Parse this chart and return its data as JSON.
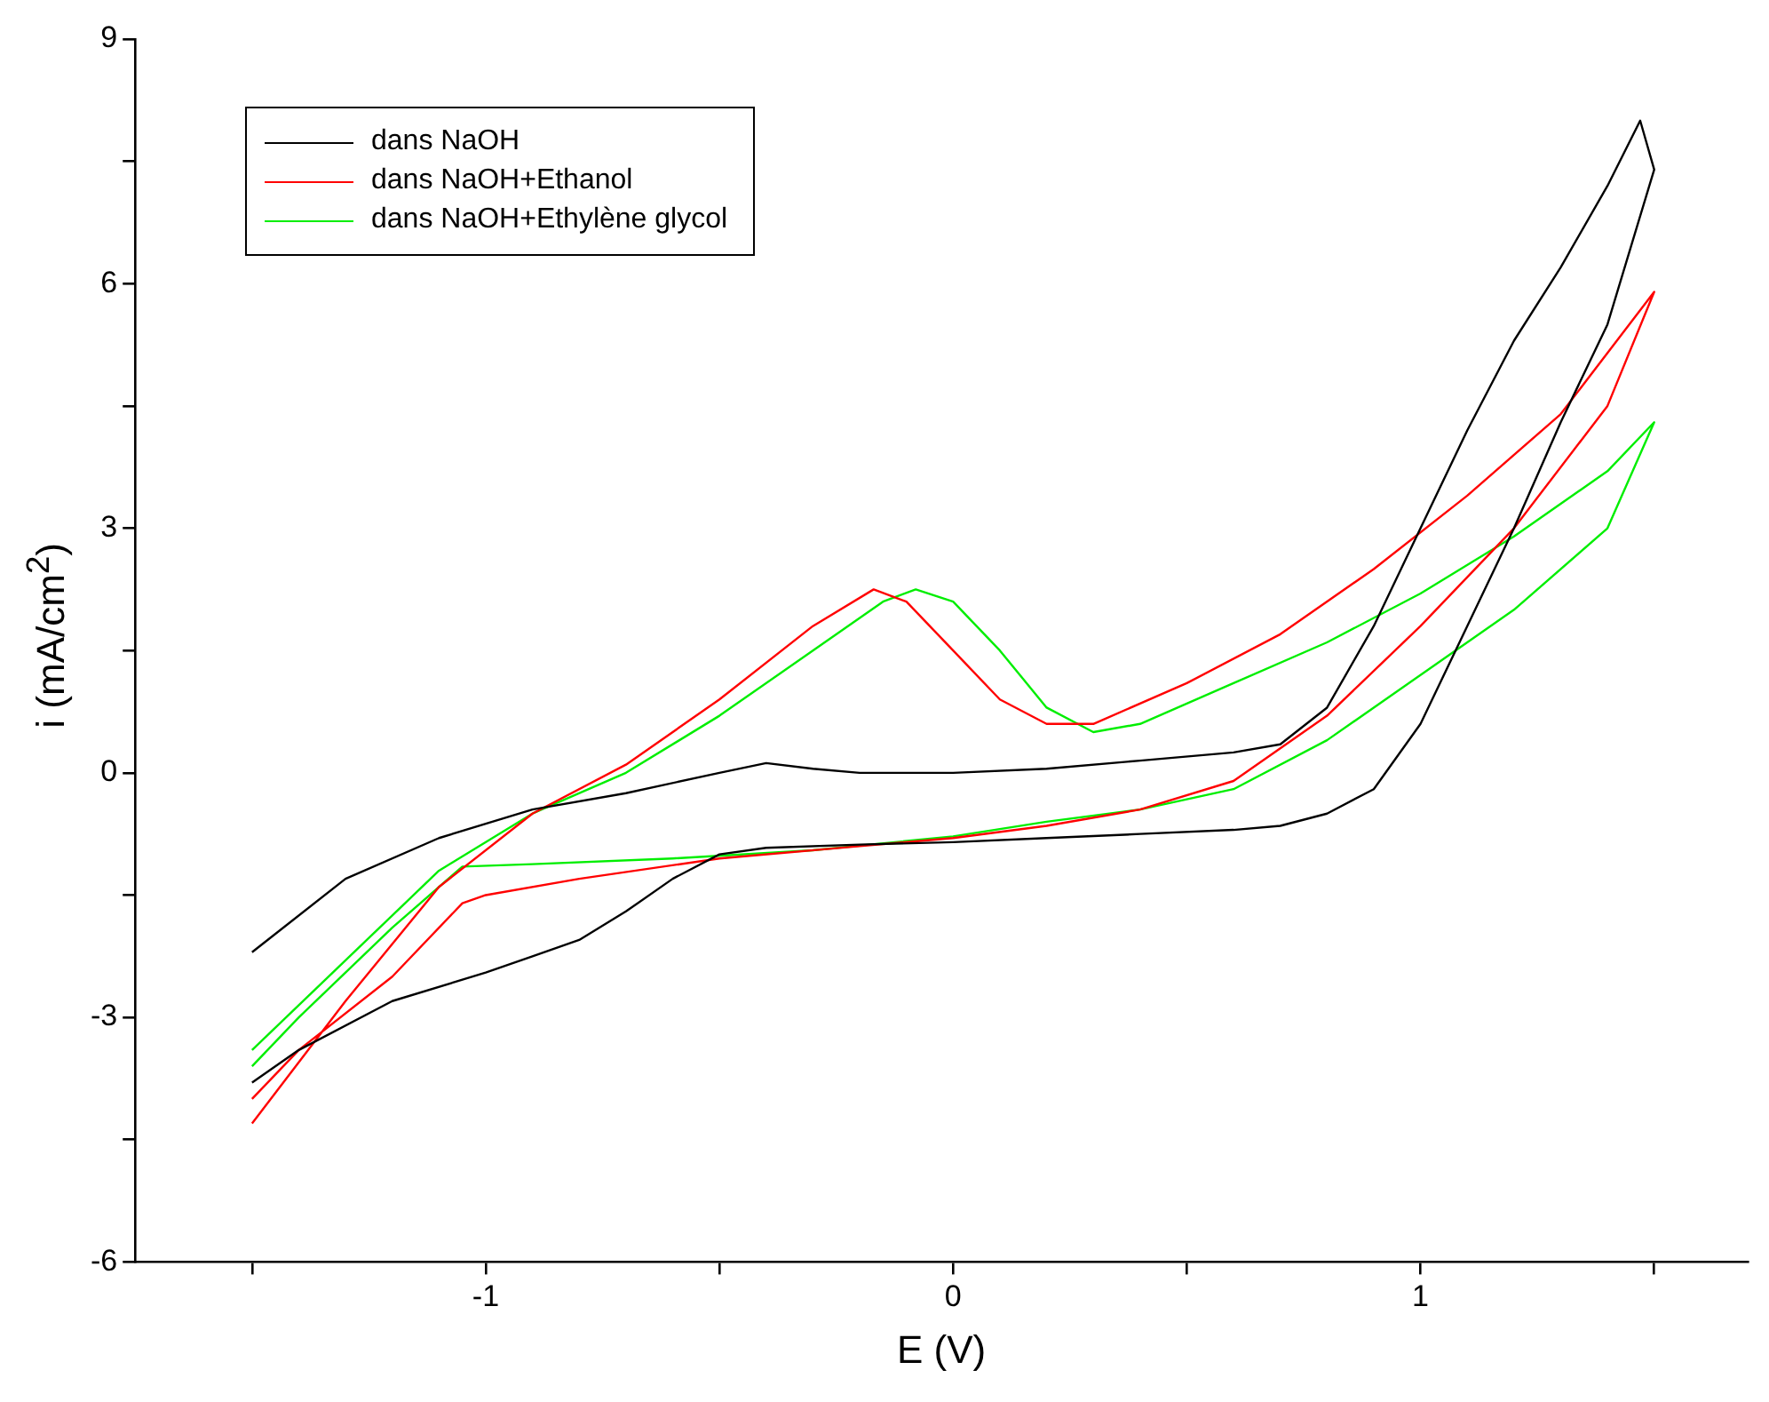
{
  "chart_data": {
    "type": "line",
    "xlabel": "E (V)",
    "ylabel": "i (mA/cm$^{2}$)",
    "xlim": [
      -1.75,
      1.7
    ],
    "ylim": [
      -6,
      9
    ],
    "xticks": [
      {
        "value": -1.5,
        "label": null
      },
      -1,
      {
        "value": -0.5,
        "label": null
      },
      0,
      {
        "value": 0.5,
        "label": null
      },
      1,
      {
        "value": 1.5,
        "label": null
      }
    ],
    "yticks": [
      -6,
      {
        "value": -4.5,
        "label": null
      },
      -3,
      {
        "value": -1.5,
        "label": null
      },
      0,
      {
        "value": 1.5,
        "label": null
      },
      3,
      {
        "value": 4.5,
        "label": null
      },
      6,
      {
        "value": 7.5,
        "label": null
      },
      9
    ],
    "legend": "top left",
    "marker": "none",
    "line_style": "solid",
    "series": [
      {
        "name": "dans NaOH",
        "color": "#000000",
        "x": [
          -1.5,
          -1.3,
          -1.1,
          -0.9,
          -0.7,
          -0.5,
          -0.4,
          -0.3,
          -0.2,
          0,
          0.2,
          0.4,
          0.6,
          0.7,
          0.8,
          0.9,
          1.0,
          1.1,
          1.2,
          1.3,
          1.4,
          1.47,
          1.5,
          1.4,
          1.3,
          1.2,
          1.1,
          1.0,
          0.9,
          0.8,
          0.7,
          0.6,
          0.4,
          0.2,
          0,
          -0.2,
          -0.4,
          -0.5,
          -0.6,
          -0.7,
          -0.8,
          -0.9,
          -1.0,
          -1.2,
          -1.4,
          -1.5
        ],
        "values": [
          -2.2,
          -1.3,
          -0.8,
          -0.45,
          -0.25,
          0.0,
          0.12,
          0.05,
          0.0,
          0.0,
          0.05,
          0.15,
          0.25,
          0.35,
          0.8,
          1.8,
          3.0,
          4.2,
          5.3,
          6.2,
          7.2,
          8.0,
          7.4,
          5.5,
          4.3,
          3.0,
          1.8,
          0.6,
          -0.2,
          -0.5,
          -0.65,
          -0.7,
          -0.75,
          -0.8,
          -0.85,
          -0.88,
          -0.92,
          -1.0,
          -1.3,
          -1.7,
          -2.05,
          -2.25,
          -2.45,
          -2.8,
          -3.4,
          -3.8
        ]
      },
      {
        "name": "dans NaOH+Ethanol",
        "color": "#ff0000",
        "x": [
          -1.5,
          -1.3,
          -1.1,
          -0.9,
          -0.7,
          -0.5,
          -0.3,
          -0.17,
          -0.1,
          0,
          0.1,
          0.2,
          0.3,
          0.5,
          0.7,
          0.9,
          1.1,
          1.3,
          1.5,
          1.4,
          1.2,
          1.0,
          0.8,
          0.6,
          0.4,
          0.2,
          0,
          -0.2,
          -0.5,
          -0.8,
          -1.0,
          -1.05,
          -1.2,
          -1.4,
          -1.5
        ],
        "values": [
          -4.3,
          -2.8,
          -1.4,
          -0.5,
          0.1,
          0.9,
          1.8,
          2.25,
          2.1,
          1.5,
          0.9,
          0.6,
          0.6,
          1.1,
          1.7,
          2.5,
          3.4,
          4.4,
          5.9,
          4.5,
          3.0,
          1.8,
          0.7,
          -0.1,
          -0.45,
          -0.65,
          -0.8,
          -0.9,
          -1.05,
          -1.3,
          -1.5,
          -1.6,
          -2.5,
          -3.4,
          -4.0
        ]
      },
      {
        "name": "dans NaOH+Ethylène glycol",
        "color": "#00ee00",
        "x": [
          -1.5,
          -1.3,
          -1.1,
          -0.9,
          -0.7,
          -0.5,
          -0.3,
          -0.15,
          -0.08,
          0,
          0.1,
          0.2,
          0.3,
          0.4,
          0.6,
          0.8,
          1.0,
          1.2,
          1.4,
          1.5,
          1.4,
          1.2,
          1.0,
          0.8,
          0.6,
          0.4,
          0.2,
          0,
          -0.3,
          -0.6,
          -0.9,
          -1.05,
          -1.2,
          -1.4,
          -1.5
        ],
        "values": [
          -3.4,
          -2.3,
          -1.2,
          -0.5,
          0.0,
          0.7,
          1.5,
          2.1,
          2.25,
          2.1,
          1.5,
          0.8,
          0.5,
          0.6,
          1.1,
          1.6,
          2.2,
          2.9,
          3.7,
          4.3,
          3.0,
          2.0,
          1.2,
          0.4,
          -0.2,
          -0.45,
          -0.6,
          -0.78,
          -0.95,
          -1.05,
          -1.12,
          -1.15,
          -1.9,
          -3.0,
          -3.6
        ]
      }
    ]
  }
}
